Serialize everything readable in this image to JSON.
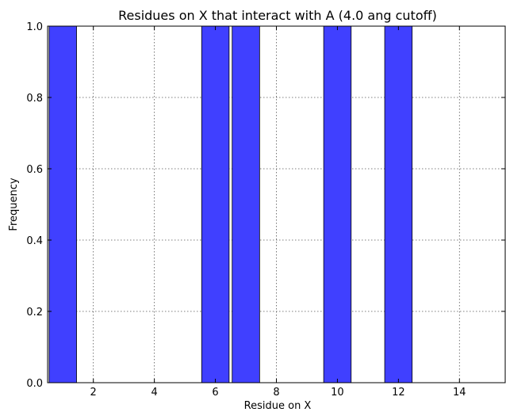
{
  "chart_data": {
    "type": "bar",
    "title": "Residues on X that interact with A (4.0 ang cutoff)",
    "xlabel": "Residue on X",
    "ylabel": "Frequency",
    "xlim": [
      0.5,
      15.5
    ],
    "ylim": [
      0.0,
      1.0
    ],
    "xticks": [
      2,
      4,
      6,
      8,
      10,
      12,
      14
    ],
    "yticks": [
      "0.0",
      "0.2",
      "0.4",
      "0.6",
      "0.8",
      "1.0"
    ],
    "grid": true,
    "bar_color": "#4040ff",
    "bar_edge_color": "#000000",
    "bar_width": 0.9,
    "x": [
      1,
      6,
      7,
      10,
      12
    ],
    "values": [
      1.0,
      1.0,
      1.0,
      1.0,
      1.0
    ]
  }
}
